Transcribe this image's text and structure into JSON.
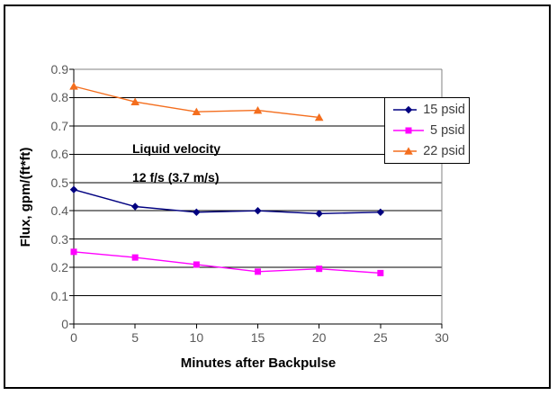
{
  "annotation": {
    "line1": "Liquid velocity",
    "line2": "12 f/s (3.7 m/s)"
  },
  "colors": {
    "background": "#ffffff",
    "frame_border": "#000000",
    "axis": "#000000",
    "gridline": "#000000",
    "plot_border": "#808080",
    "tick_label": "#5a5a5a",
    "legend_text": "#3d3d3d",
    "series_15psid": "#000080",
    "series_5psid": "#ff00ff",
    "series_22psid": "#f46e1e"
  },
  "chart_data": {
    "type": "line",
    "title": "",
    "xlabel": "Minutes after Backpulse",
    "ylabel": "Flux, gpm/(ft*ft)",
    "xlim": [
      0,
      30
    ],
    "ylim": [
      0,
      0.9
    ],
    "x_ticks": [
      0,
      5,
      10,
      15,
      20,
      25,
      30
    ],
    "y_ticks": [
      0,
      0.1,
      0.2,
      0.3,
      0.4,
      0.5,
      0.6,
      0.7,
      0.8,
      0.9
    ],
    "grid": true,
    "legend_position": "right-inside",
    "series": [
      {
        "name": "15 psid",
        "color": "#000080",
        "marker": "diamond",
        "x": [
          0,
          5,
          10,
          15,
          20,
          25
        ],
        "y": [
          0.475,
          0.415,
          0.395,
          0.4,
          0.39,
          0.395
        ]
      },
      {
        "name": "5 psid",
        "color": "#ff00ff",
        "marker": "square",
        "x": [
          0,
          5,
          10,
          15,
          20,
          25
        ],
        "y": [
          0.255,
          0.235,
          0.21,
          0.185,
          0.195,
          0.18
        ]
      },
      {
        "name": "22 psid",
        "color": "#f46e1e",
        "marker": "triangle",
        "x": [
          0,
          5,
          10,
          15,
          20
        ],
        "y": [
          0.84,
          0.785,
          0.75,
          0.755,
          0.73
        ]
      }
    ]
  }
}
